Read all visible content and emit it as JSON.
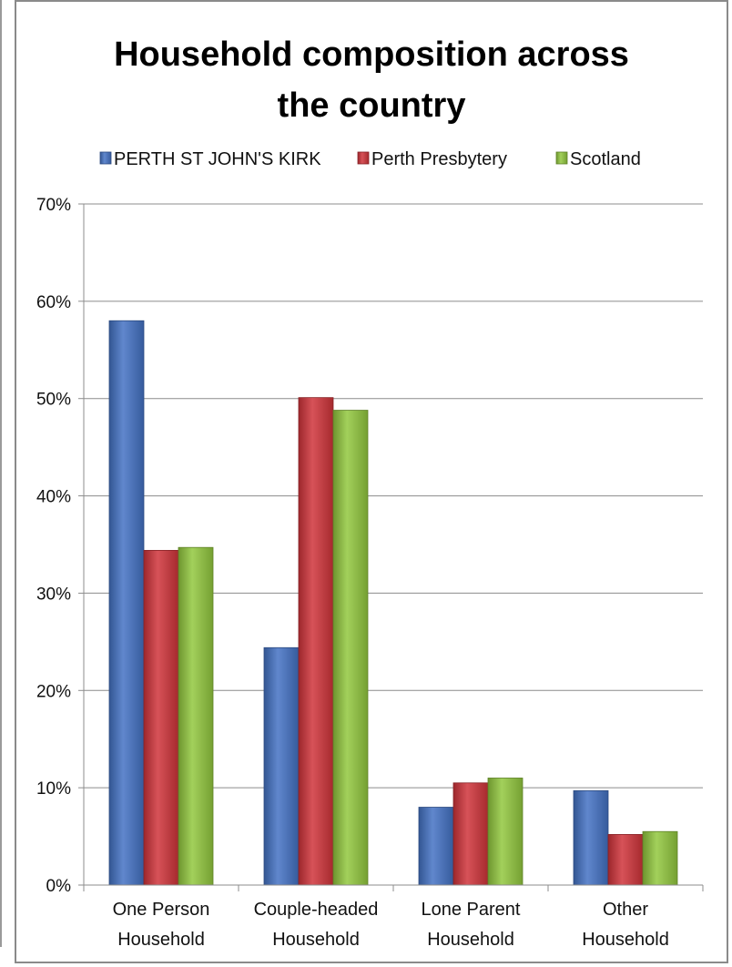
{
  "chart_data": {
    "type": "bar",
    "title_lines": [
      "Household composition across",
      "the country"
    ],
    "categories": [
      [
        "One Person",
        "Household"
      ],
      [
        "Couple-headed",
        "Household"
      ],
      [
        "Lone Parent",
        "Household"
      ],
      [
        "Other",
        "Household"
      ]
    ],
    "series": [
      {
        "name": "PERTH ST JOHN'S KIRK",
        "color": "#4472C4",
        "values": [
          58,
          24.4,
          8,
          9.7
        ]
      },
      {
        "name": "Perth Presbytery",
        "color": "#D0343A",
        "values": [
          34.4,
          50.1,
          10.5,
          5.2
        ]
      },
      {
        "name": "Scotland",
        "color": "#92C83E",
        "values": [
          34.7,
          48.8,
          11,
          5.5
        ]
      }
    ],
    "ylim": [
      0,
      70
    ],
    "yticks": [
      0,
      10,
      20,
      30,
      40,
      50,
      60,
      70
    ],
    "ytick_labels": [
      "0%",
      "10%",
      "20%",
      "30%",
      "40%",
      "50%",
      "60%",
      "70%"
    ],
    "grid": true,
    "legend_position": "top"
  }
}
